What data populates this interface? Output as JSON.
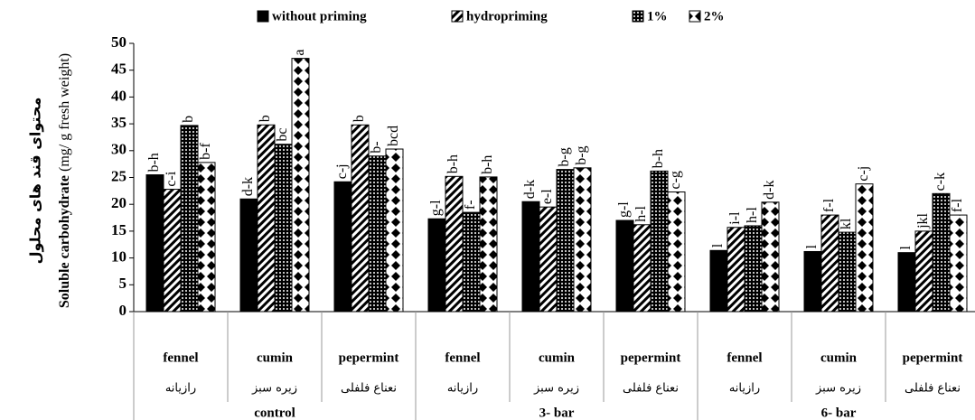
{
  "chart_data": {
    "type": "bar",
    "y_label": "Soluble carbohydrate",
    "y_label_unit": "(mg/ g fresh weight)",
    "y_label_fa": "محتوای قند های محلول",
    "categories": [
      "fennel",
      "cumin",
      "pepermint",
      "fennel",
      "cumin",
      "pepermint",
      "fennel",
      "cumin",
      "pepermint"
    ],
    "categories_fa": [
      "رازیانه",
      "زیره سبز",
      "نعناع فلفلی",
      "رازیانه",
      "زیره سبز",
      "نعناع فلفلی",
      "رازیانه",
      "زیره سبز",
      "نعناع فلفلی"
    ],
    "groups": [
      "control",
      "3- bar",
      "6- bar"
    ],
    "ylim": [
      0,
      50
    ],
    "yticks": [
      0,
      5,
      10,
      15,
      20,
      25,
      30,
      35,
      40,
      45,
      50
    ],
    "series": [
      {
        "name": "without priming",
        "color": "#000000",
        "pattern": "solid",
        "values": [
          25.5,
          21,
          24.2,
          17.3,
          20.5,
          17,
          11.4,
          11.2,
          11
        ],
        "value_labels": [
          "b-h",
          "d-k",
          "c-j",
          "g-l",
          "d-k",
          "g-l",
          "l",
          "l",
          "l"
        ]
      },
      {
        "name": "hydropriming",
        "color": "#000000",
        "pattern": "hatch",
        "values": [
          22.8,
          34.8,
          34.8,
          25.2,
          19.5,
          16.2,
          15.7,
          18,
          15
        ],
        "value_labels": [
          "c-i",
          "b",
          "b",
          "b-h",
          "e-l",
          "h-l",
          "i-l",
          "f-l",
          "jkl"
        ]
      },
      {
        "name": "1%",
        "color": "#000000",
        "pattern": "dots",
        "values": [
          34.7,
          31.2,
          29,
          18.5,
          26.5,
          26.2,
          16,
          14.8,
          22
        ],
        "value_labels": [
          "b",
          "bc",
          "b-",
          "f-",
          "b-g",
          "b-h",
          "h-l",
          "kl",
          "c-k"
        ]
      },
      {
        "name": "2%",
        "color": "#000000",
        "pattern": "diamond",
        "values": [
          27.8,
          47.2,
          30.3,
          25.1,
          26.8,
          22.3,
          20.4,
          23.8,
          18
        ],
        "value_labels": [
          "b-f",
          "a",
          "bcd",
          "b-h",
          "b-g",
          "c-g",
          "d-k",
          "c-j",
          "f-l"
        ]
      }
    ]
  }
}
